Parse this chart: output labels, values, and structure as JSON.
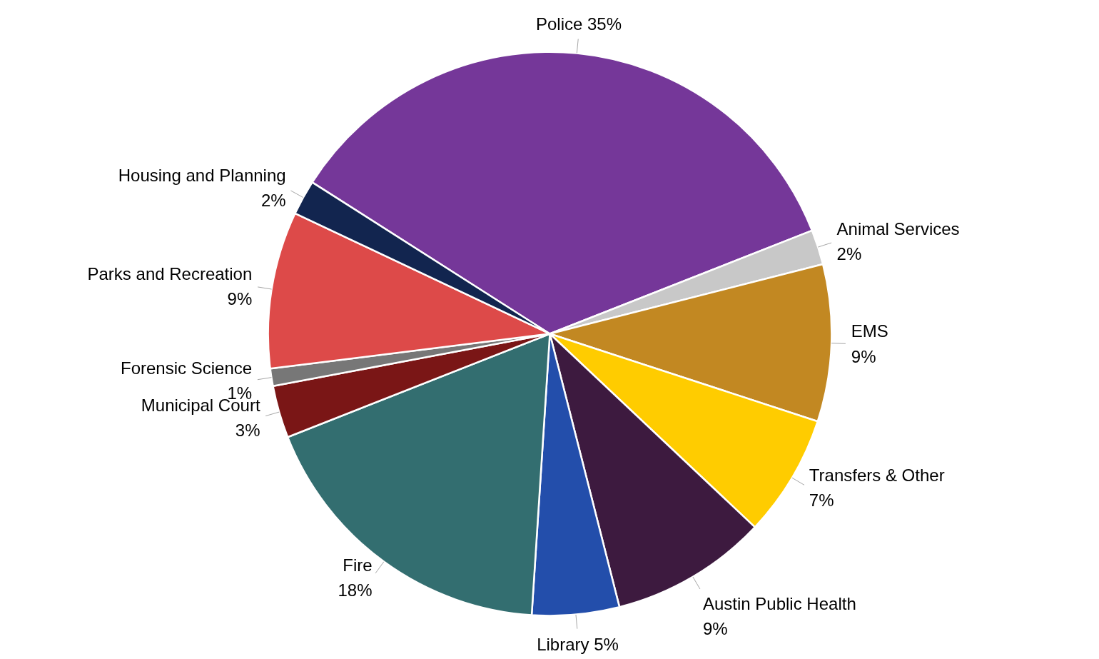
{
  "chart_data": {
    "type": "pie",
    "categories": [
      "Police",
      "Animal Services",
      "EMS",
      "Transfers & Other",
      "Austin Public Health",
      "Library",
      "Fire",
      "Municipal Court",
      "Forensic Science",
      "Parks and Recreation",
      "Housing and Planning"
    ],
    "values": [
      35,
      2,
      9,
      7,
      9,
      5,
      18,
      3,
      1,
      9,
      2
    ],
    "value_labels": [
      "35%",
      "2%",
      "9%",
      "7%",
      "9%",
      "5%",
      "18%",
      "3%",
      "1%",
      "9%",
      "2%"
    ],
    "colors": [
      "#753799",
      "#c8c8c8",
      "#c28822",
      "#ffcc00",
      "#3d1a3f",
      "#234eab",
      "#336e70",
      "#7a1616",
      "#777777",
      "#dd4a49",
      "#12254f"
    ]
  }
}
